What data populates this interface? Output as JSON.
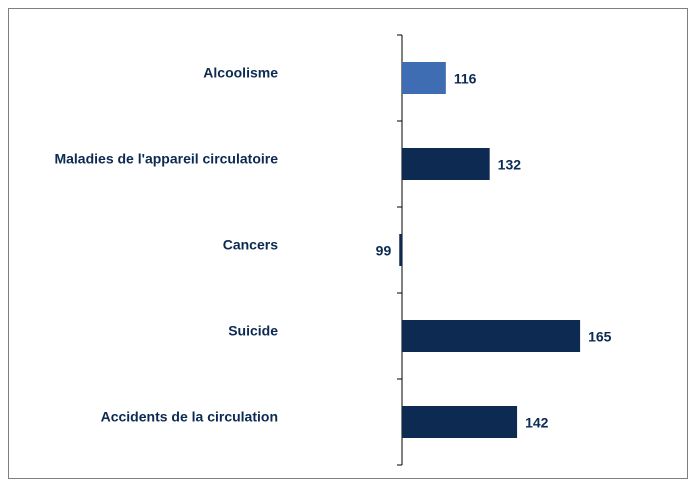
{
  "chart_data": {
    "type": "hbar",
    "categories": [
      "Alcoolisme",
      "Maladies de l'appareil circulatoire",
      "Cancers",
      "Suicide",
      "Accidents de la circulation"
    ],
    "values": [
      116,
      132,
      99,
      165,
      142
    ],
    "colors": [
      "#3f6db3",
      "#0c2a52",
      "#0c2a52",
      "#0c2a52",
      "#0c2a52"
    ],
    "xlim": [
      100,
      200
    ]
  }
}
